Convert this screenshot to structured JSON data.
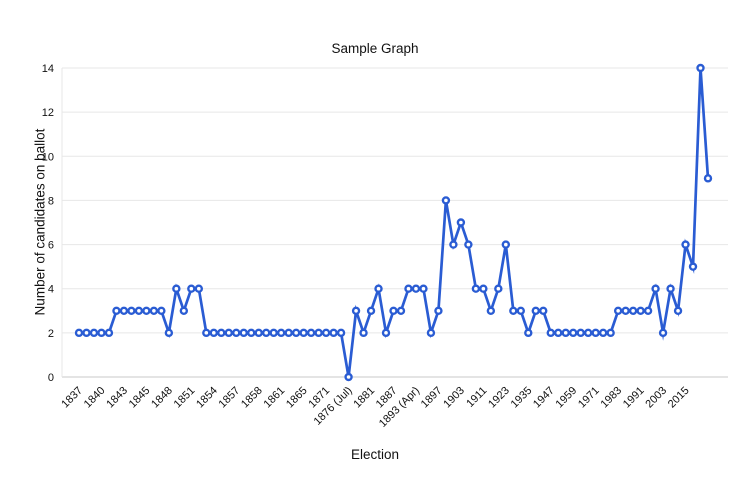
{
  "chart_data": {
    "type": "line",
    "title": "Sample Graph",
    "xlabel": "Election",
    "ylabel": "Number of candidates on ballot",
    "ylim": [
      0,
      14
    ],
    "y_ticks": [
      0,
      2,
      4,
      6,
      8,
      10,
      12,
      14
    ],
    "grid": "horizontal",
    "legend": "none",
    "marker": "open-circle",
    "line_color": "#2a5cd3",
    "marker_fill": "#ffffff",
    "grid_color": "#e7e7e7",
    "axis_color": "#c8c8c8",
    "text_color": "#111111",
    "x_tick_every": 3,
    "x_tick_labels": [
      "1837",
      "1840",
      "1843",
      "1845",
      "1848",
      "1851",
      "1854",
      "1857",
      "1858",
      "1861",
      "1865",
      "1871",
      "1876 (Jul)",
      "1881",
      "1887",
      "1893 (Apr)",
      "1897",
      "1903",
      "1911",
      "1923",
      "1935",
      "1947",
      "1959",
      "1971",
      "1983",
      "1991",
      "2003",
      "2015"
    ],
    "values": [
      2,
      2,
      2,
      2,
      2,
      3,
      3,
      3,
      3,
      3,
      3,
      3,
      2,
      4,
      3,
      4,
      4,
      2,
      2,
      2,
      2,
      2,
      2,
      2,
      2,
      2,
      2,
      2,
      2,
      2,
      2,
      2,
      2,
      2,
      2,
      2,
      0,
      3,
      2,
      3,
      4,
      2,
      3,
      3,
      4,
      4,
      4,
      2,
      3,
      8,
      6,
      7,
      6,
      4,
      4,
      3,
      4,
      6,
      3,
      3,
      2,
      3,
      3,
      2,
      2,
      2,
      2,
      2,
      2,
      2,
      2,
      2,
      3,
      3,
      3,
      3,
      3,
      4,
      2,
      4,
      3,
      6,
      5,
      14,
      9
    ]
  }
}
